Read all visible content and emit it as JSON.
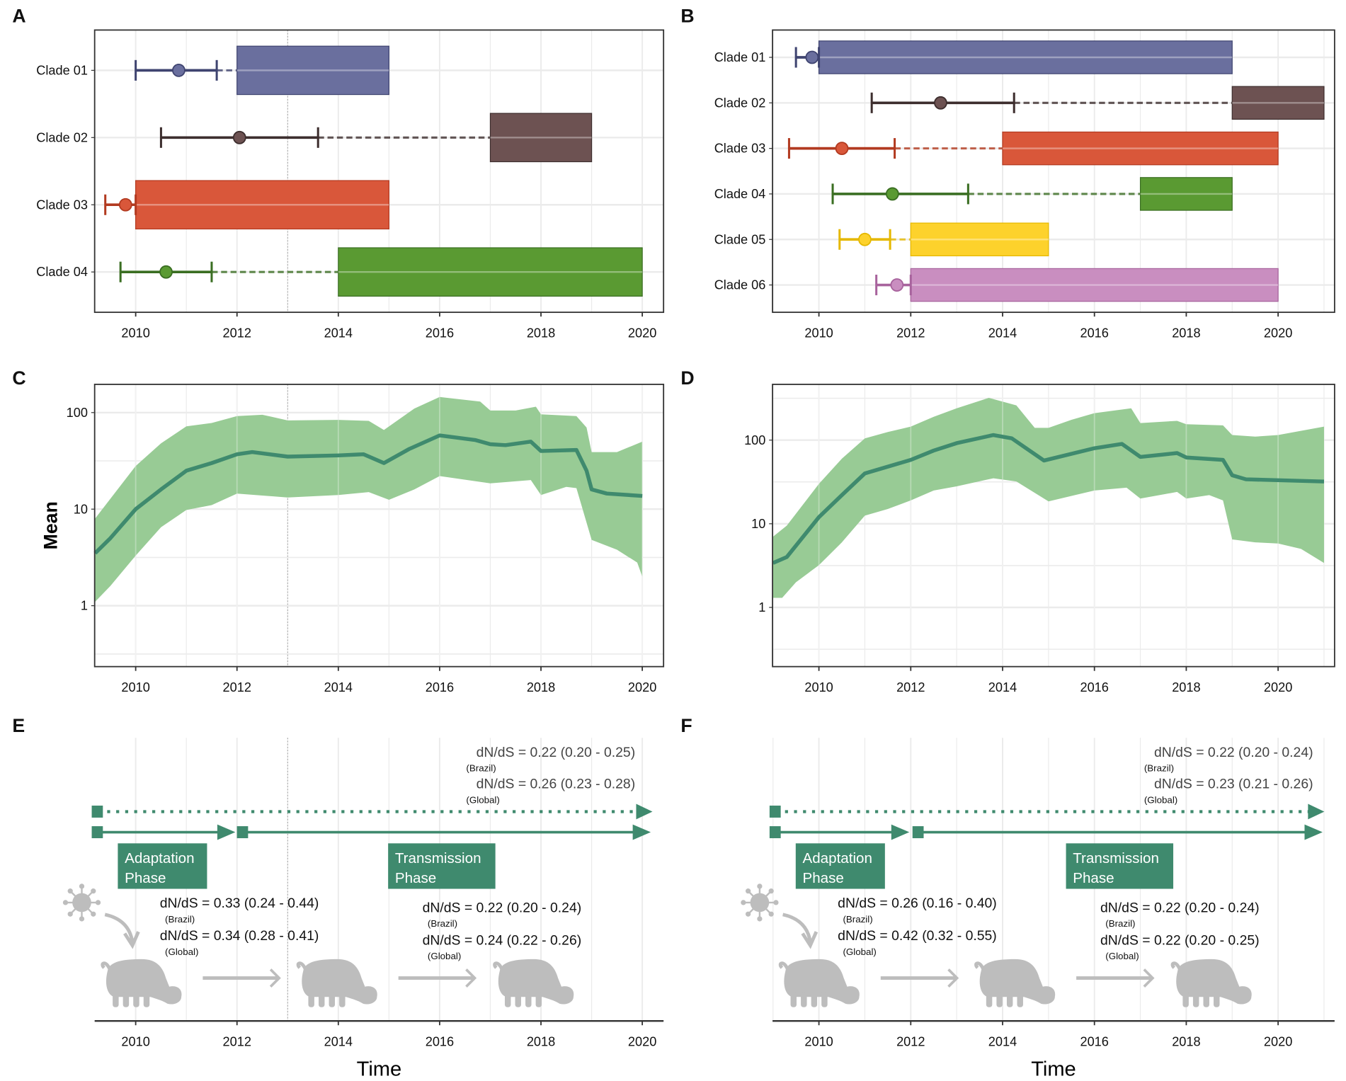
{
  "accent": "#3f8a6e",
  "band_color": "#98cb95",
  "gray": "#bdbdbd",
  "chart_data": [
    {
      "panel": "A",
      "type": "timeline",
      "xlim": [
        2009.19,
        2020.42
      ],
      "xticks": [
        2010,
        2012,
        2014,
        2016,
        2018,
        2020
      ],
      "marker_year": 2013,
      "clades": [
        {
          "label": "Clade 01",
          "tmrca": 2010.85,
          "ci": [
            2010.0,
            2011.6
          ],
          "box": [
            2012,
            2015
          ],
          "color": "#6a6f9e",
          "dark": "#3f4470"
        },
        {
          "label": "Clade 02",
          "tmrca": 2012.05,
          "ci": [
            2010.5,
            2013.6
          ],
          "box": [
            2017,
            2019
          ],
          "color": "#6d5252",
          "dark": "#3d2e2e"
        },
        {
          "label": "Clade 03",
          "tmrca": 2009.8,
          "ci": [
            2009.4,
            2010.0
          ],
          "box": [
            2010,
            2015
          ],
          "color": "#d9573a",
          "dark": "#b23a20"
        },
        {
          "label": "Clade 04",
          "tmrca": 2010.6,
          "ci": [
            2009.7,
            2011.5
          ],
          "box": [
            2014,
            2020
          ],
          "color": "#5a9a32",
          "dark": "#3a6e22"
        }
      ]
    },
    {
      "panel": "B",
      "type": "timeline",
      "xlim": [
        2008.99,
        2021.23
      ],
      "xticks": [
        2010,
        2012,
        2014,
        2016,
        2018,
        2020
      ],
      "clades": [
        {
          "label": "Clade 01",
          "tmrca": 2009.85,
          "ci": [
            2009.5,
            2010.0
          ],
          "box": [
            2010,
            2019
          ],
          "color": "#6a6f9e",
          "dark": "#3f4470"
        },
        {
          "label": "Clade 02",
          "tmrca": 2012.65,
          "ci": [
            2011.15,
            2014.25
          ],
          "box": [
            2019,
            2021
          ],
          "color": "#6d5252",
          "dark": "#3d2e2e"
        },
        {
          "label": "Clade 03",
          "tmrca": 2010.5,
          "ci": [
            2009.35,
            2011.65
          ],
          "box": [
            2014,
            2020
          ],
          "color": "#d9573a",
          "dark": "#b23a20"
        },
        {
          "label": "Clade 04",
          "tmrca": 2011.6,
          "ci": [
            2010.3,
            2013.25
          ],
          "box": [
            2017,
            2019
          ],
          "color": "#5a9a32",
          "dark": "#3a6e22"
        },
        {
          "label": "Clade 05",
          "tmrca": 2011.0,
          "ci": [
            2010.45,
            2011.55
          ],
          "box": [
            2012,
            2015
          ],
          "color": "#fdd22c",
          "dark": "#e5b800"
        },
        {
          "label": "Clade 06",
          "tmrca": 2011.7,
          "ci": [
            2011.25,
            2012.0
          ],
          "box": [
            2012,
            2020
          ],
          "color": "#c98ec0",
          "dark": "#a8639d"
        }
      ]
    },
    {
      "panel": "C",
      "type": "area",
      "ylabel": "Mean",
      "yscale": "log",
      "xlim": [
        2009.19,
        2020.42
      ],
      "ylim": [
        0.234,
        196
      ],
      "xticks": [
        2010,
        2012,
        2014,
        2016,
        2018,
        2020
      ],
      "yticks": [
        1,
        10,
        100
      ],
      "marker_year": 2013,
      "mean": [
        [
          2009.2,
          3.5
        ],
        [
          2009.5,
          5
        ],
        [
          2010,
          10
        ],
        [
          2010.5,
          16
        ],
        [
          2011,
          25
        ],
        [
          2011.5,
          30
        ],
        [
          2012,
          37
        ],
        [
          2012.3,
          39
        ],
        [
          2013,
          35
        ],
        [
          2014,
          36
        ],
        [
          2014.5,
          37
        ],
        [
          2014.9,
          30
        ],
        [
          2015.4,
          42
        ],
        [
          2016,
          58
        ],
        [
          2016.7,
          52
        ],
        [
          2017,
          47
        ],
        [
          2017.3,
          46
        ],
        [
          2017.8,
          50
        ],
        [
          2018,
          40
        ],
        [
          2018.7,
          41
        ],
        [
          2018.9,
          25
        ],
        [
          2019,
          16
        ],
        [
          2019.3,
          14.5
        ],
        [
          2020,
          13.7
        ]
      ],
      "upper": [
        [
          2009.2,
          8
        ],
        [
          2010,
          28
        ],
        [
          2010.5,
          48
        ],
        [
          2011,
          72
        ],
        [
          2011.5,
          78
        ],
        [
          2012,
          92
        ],
        [
          2012.5,
          95
        ],
        [
          2013,
          83
        ],
        [
          2014,
          84
        ],
        [
          2014.6,
          82
        ],
        [
          2014.9,
          66
        ],
        [
          2015.5,
          110
        ],
        [
          2016,
          145
        ],
        [
          2016.8,
          130
        ],
        [
          2017,
          105
        ],
        [
          2017.5,
          105
        ],
        [
          2017.9,
          115
        ],
        [
          2018,
          96
        ],
        [
          2018.7,
          92
        ],
        [
          2018.9,
          70
        ],
        [
          2019,
          39
        ],
        [
          2019.5,
          39
        ],
        [
          2020,
          50
        ]
      ],
      "lower": [
        [
          2009.2,
          1.1
        ],
        [
          2009.5,
          1.6
        ],
        [
          2010,
          3.3
        ],
        [
          2010.5,
          6.5
        ],
        [
          2011,
          9.8
        ],
        [
          2011.5,
          11
        ],
        [
          2012,
          14.5
        ],
        [
          2013,
          13.2
        ],
        [
          2014,
          14
        ],
        [
          2014.6,
          15
        ],
        [
          2015,
          12.5
        ],
        [
          2015.5,
          16
        ],
        [
          2016,
          22
        ],
        [
          2017,
          18.5
        ],
        [
          2017.8,
          20
        ],
        [
          2018,
          14
        ],
        [
          2018.5,
          17
        ],
        [
          2018.7,
          16.5
        ],
        [
          2019,
          4.8
        ],
        [
          2019.5,
          3.8
        ],
        [
          2019.9,
          2.8
        ],
        [
          2020,
          2.0
        ]
      ]
    },
    {
      "panel": "D",
      "type": "area",
      "yscale": "log",
      "xlim": [
        2008.99,
        2021.23
      ],
      "ylim": [
        0.196,
        464
      ],
      "xticks": [
        2010,
        2012,
        2014,
        2016,
        2018,
        2020
      ],
      "yticks": [
        1,
        10,
        100
      ],
      "mean": [
        [
          2009,
          3.4
        ],
        [
          2009.3,
          4
        ],
        [
          2010,
          12
        ],
        [
          2010.5,
          22
        ],
        [
          2011,
          40
        ],
        [
          2012,
          58
        ],
        [
          2012.5,
          75
        ],
        [
          2013,
          92
        ],
        [
          2013.8,
          115
        ],
        [
          2014.2,
          105
        ],
        [
          2014.9,
          57
        ],
        [
          2016,
          80
        ],
        [
          2016.6,
          90
        ],
        [
          2017,
          63
        ],
        [
          2017.8,
          70
        ],
        [
          2018,
          62
        ],
        [
          2018.8,
          58
        ],
        [
          2019,
          38
        ],
        [
          2019.3,
          34
        ],
        [
          2021,
          32
        ]
      ],
      "upper": [
        [
          2009,
          7
        ],
        [
          2009.3,
          9.5
        ],
        [
          2010,
          30
        ],
        [
          2010.5,
          60
        ],
        [
          2011,
          105
        ],
        [
          2011.5,
          125
        ],
        [
          2012,
          145
        ],
        [
          2012.5,
          190
        ],
        [
          2013,
          240
        ],
        [
          2013.7,
          320
        ],
        [
          2014.3,
          260
        ],
        [
          2014.7,
          140
        ],
        [
          2015,
          140
        ],
        [
          2015.5,
          175
        ],
        [
          2016,
          210
        ],
        [
          2016.8,
          240
        ],
        [
          2017,
          160
        ],
        [
          2017.8,
          170
        ],
        [
          2018,
          155
        ],
        [
          2018.8,
          150
        ],
        [
          2019,
          115
        ],
        [
          2019.5,
          110
        ],
        [
          2020,
          115
        ],
        [
          2021,
          145
        ]
      ],
      "lower": [
        [
          2009,
          1.3
        ],
        [
          2009.2,
          1.3
        ],
        [
          2009.5,
          2
        ],
        [
          2010,
          3.2
        ],
        [
          2010.5,
          6
        ],
        [
          2011,
          12.5
        ],
        [
          2011.5,
          15
        ],
        [
          2012,
          19
        ],
        [
          2012.5,
          25
        ],
        [
          2013,
          28
        ],
        [
          2013.8,
          35
        ],
        [
          2014.3,
          32
        ],
        [
          2015,
          18.5
        ],
        [
          2016,
          25
        ],
        [
          2016.7,
          27
        ],
        [
          2017,
          20
        ],
        [
          2017.8,
          24
        ],
        [
          2018,
          20
        ],
        [
          2018.5,
          22
        ],
        [
          2018.8,
          19
        ],
        [
          2019,
          6.5
        ],
        [
          2019.5,
          6
        ],
        [
          2020,
          5.8
        ],
        [
          2020.5,
          5
        ],
        [
          2021,
          3.4
        ]
      ]
    },
    {
      "panel": "E",
      "type": "diagram",
      "xlabel": "Time",
      "xlim": [
        2009.19,
        2020.42
      ],
      "xticks": [
        2010,
        2012,
        2014,
        2016,
        2018,
        2020
      ],
      "marker_year": 2013,
      "start": 2009.2,
      "adaptation_end": 2011.95,
      "transmission_start": 2012.1,
      "end": 2020.15,
      "overall": {
        "brazil": "dN/dS = 0.22 (0.20 - 0.25)",
        "brazil_sub": "(Brazil)",
        "global": "dN/dS = 0.26 (0.23 - 0.28)",
        "global_sub": "(Global)"
      },
      "adaptation": {
        "title1": "Adaptation",
        "title2": "Phase",
        "brazil": "dN/dS = 0.33 (0.24 - 0.44)",
        "brazil_sub": "(Brazil)",
        "global": "dN/dS = 0.34 (0.28 - 0.41)",
        "global_sub": "(Global)"
      },
      "transmission": {
        "title1": "Transmission",
        "title2": "Phase",
        "brazil": "dN/dS = 0.22 (0.20 - 0.24)",
        "brazil_sub": "(Brazil)",
        "global": "dN/dS = 0.24 (0.22 - 0.26)",
        "global_sub": "(Global)"
      }
    },
    {
      "panel": "F",
      "type": "diagram",
      "xlabel": "Time",
      "xlim": [
        2008.99,
        2021.23
      ],
      "xticks": [
        2010,
        2012,
        2014,
        2016,
        2018,
        2020
      ],
      "start": 2009.0,
      "adaptation_end": 2011.95,
      "transmission_start": 2012.15,
      "end": 2020.95,
      "overall": {
        "brazil": "dN/dS = 0.22 (0.20 - 0.24)",
        "brazil_sub": "(Brazil)",
        "global": "dN/dS = 0.23 (0.21 - 0.26)",
        "global_sub": "(Global)"
      },
      "adaptation": {
        "title1": "Adaptation",
        "title2": "Phase",
        "brazil": "dN/dS = 0.26 (0.16 - 0.40)",
        "brazil_sub": "(Brazil)",
        "global": "dN/dS = 0.42 (0.32 - 0.55)",
        "global_sub": "(Global)"
      },
      "transmission": {
        "title1": "Transmission",
        "title2": "Phase",
        "brazil": "dN/dS = 0.22 (0.20 - 0.24)",
        "brazil_sub": "(Brazil)",
        "global": "dN/dS = 0.22 (0.20 - 0.25)",
        "global_sub": "(Global)"
      }
    }
  ]
}
